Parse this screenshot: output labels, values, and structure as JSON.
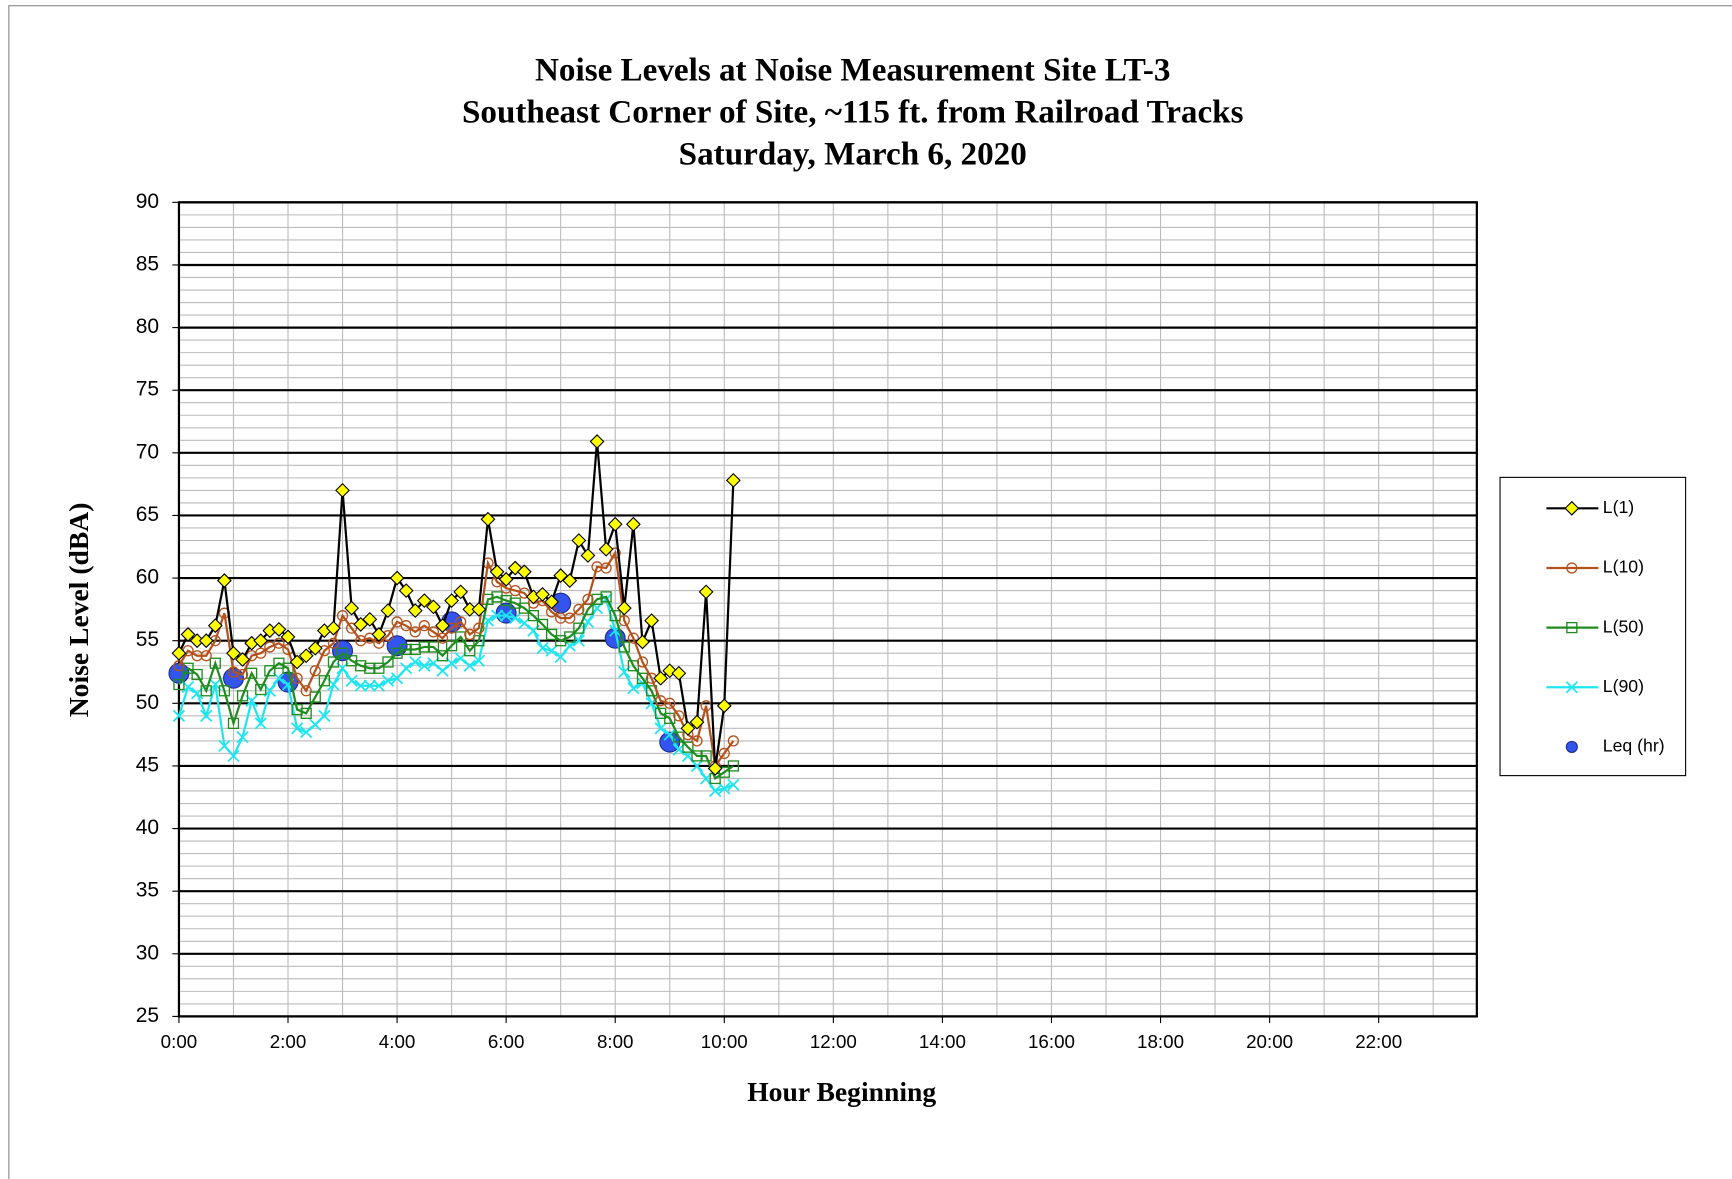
{
  "chart_data": {
    "type": "line",
    "title": [
      "Noise Levels at Noise Measurement Site LT-3",
      "Southeast Corner of Site, ~115 ft. from Railroad Tracks",
      "Saturday, March 6, 2020"
    ],
    "x_label": "Hour Beginning",
    "y_label": "Noise Level (dBA)",
    "xlim": [
      0,
      23.8
    ],
    "ylim": [
      25,
      90
    ],
    "xticks": [
      {
        "value": 0,
        "label": "0:00"
      },
      {
        "value": 2,
        "label": "2:00"
      },
      {
        "value": 4,
        "label": "4:00"
      },
      {
        "value": 6,
        "label": "6:00"
      },
      {
        "value": 8,
        "label": "8:00"
      },
      {
        "value": 10,
        "label": "10:00"
      },
      {
        "value": 12,
        "label": "12:00"
      },
      {
        "value": 14,
        "label": "14:00"
      },
      {
        "value": 16,
        "label": "16:00"
      },
      {
        "value": 18,
        "label": "18:00"
      },
      {
        "value": 20,
        "label": "20:00"
      },
      {
        "value": 22,
        "label": "22:00"
      }
    ],
    "yticks": [
      25,
      30,
      35,
      40,
      45,
      50,
      55,
      60,
      65,
      70,
      75,
      80,
      85,
      90
    ],
    "x_minor_step": 1,
    "y_minor_step": 1,
    "grid": true,
    "legend": "right",
    "x": [
      0,
      0.1667,
      0.3333,
      0.5,
      0.6667,
      0.8333,
      1,
      1.1667,
      1.3333,
      1.5,
      1.6667,
      1.8333,
      2,
      2.1667,
      2.3333,
      2.5,
      2.6667,
      2.8333,
      3,
      3.1667,
      3.3333,
      3.5,
      3.6667,
      3.8333,
      4,
      4.1667,
      4.3333,
      4.5,
      4.6667,
      4.8333,
      5,
      5.1667,
      5.3333,
      5.5,
      5.6667,
      5.8333,
      6,
      6.1667,
      6.3333,
      6.5,
      6.6667,
      6.8333,
      7,
      7.1667,
      7.3333,
      7.5,
      7.6667,
      7.8333,
      8,
      8.1667,
      8.3333,
      8.5,
      8.6667,
      8.8333,
      9,
      9.1667,
      9.3333,
      9.5,
      9.6667,
      9.8333,
      10,
      10.1667
    ],
    "series": [
      {
        "name": "L(1)",
        "color": "#000000",
        "marker": "diamond",
        "marker_color": "#ffff00",
        "values": [
          54,
          55.5,
          55,
          55,
          56.2,
          59.8,
          54,
          53.5,
          54.8,
          55,
          55.8,
          55.9,
          55.3,
          53.3,
          53.8,
          54.4,
          55.8,
          56,
          67,
          57.6,
          56.3,
          56.7,
          55.5,
          57.4,
          60,
          59,
          57.4,
          58.2,
          57.7,
          56.2,
          58.2,
          58.9,
          57.5,
          57.5,
          64.7,
          60.5,
          59.9,
          60.8,
          60.5,
          58.5,
          58.7,
          58.1,
          60.2,
          59.8,
          63,
          61.8,
          70.9,
          62.3,
          64.3,
          57.6,
          64.3,
          54.9,
          56.6,
          52,
          52.6,
          52.4,
          48,
          48.5,
          58.9,
          44.8,
          49.8,
          67.8
        ]
      },
      {
        "name": "L(10)",
        "color": "#b5521b",
        "marker": "circle",
        "values": [
          53,
          54.2,
          53.8,
          53.8,
          55,
          57.2,
          52.5,
          52.3,
          53.8,
          54,
          54.5,
          54.8,
          54.3,
          52,
          51,
          52.6,
          54.2,
          54.8,
          57,
          56,
          55,
          55.2,
          54.8,
          55.4,
          56.5,
          56.2,
          55.7,
          56.2,
          55.7,
          55.2,
          56,
          56.5,
          55.5,
          56,
          61.2,
          59.7,
          59.2,
          59,
          58.8,
          58,
          58.2,
          57.3,
          56.8,
          56.8,
          57.5,
          58.3,
          60.9,
          60.8,
          62,
          56.6,
          55.2,
          53.3,
          52,
          50.2,
          50,
          49,
          47.5,
          47,
          49.8,
          45,
          46,
          47
        ]
      },
      {
        "name": "L(50)",
        "color": "#1e8c1e",
        "marker": "square",
        "values": [
          51.5,
          52.8,
          52.3,
          51,
          53.2,
          51,
          48.4,
          50.6,
          52.4,
          51.1,
          52.6,
          53.2,
          52.8,
          49.5,
          49.2,
          50.5,
          51.8,
          53.3,
          54,
          53.4,
          53,
          52.8,
          52.8,
          53.3,
          54,
          54.3,
          54.3,
          54.5,
          54.5,
          53.8,
          54.6,
          55.3,
          54.2,
          55,
          58.3,
          58.5,
          58.2,
          58,
          57.6,
          57,
          56.3,
          55.5,
          55,
          55.3,
          56,
          57.5,
          58.3,
          58.5,
          57,
          54.5,
          53,
          52,
          51,
          49.2,
          48.8,
          47.3,
          46.5,
          45.8,
          45.8,
          44,
          44.5,
          45
        ]
      },
      {
        "name": "L(90)",
        "color": "#1ee6f0",
        "marker": "x",
        "values": [
          49,
          51.3,
          50.8,
          49,
          51.5,
          46.6,
          45.8,
          47.3,
          50.2,
          48.4,
          51,
          52,
          51.5,
          48,
          47.7,
          48.3,
          49,
          51.5,
          52.8,
          51.8,
          51.4,
          51.4,
          51.4,
          51.8,
          52,
          52.8,
          53.3,
          53,
          53.2,
          52.6,
          53.2,
          53.6,
          53,
          53.4,
          56.6,
          57,
          57,
          56.8,
          56.4,
          55.8,
          54.4,
          54.2,
          53.7,
          54.6,
          55,
          56.5,
          57.6,
          58.3,
          55.8,
          52.5,
          51.2,
          51.6,
          50,
          48,
          47.5,
          46.3,
          45.8,
          45,
          44,
          43,
          43.2,
          43.5
        ]
      },
      {
        "name": "Leq (hr)",
        "color": "#3355ee",
        "marker": "dot",
        "line": false,
        "x": [
          0,
          1,
          2,
          3,
          4,
          5,
          6,
          7,
          8,
          9
        ],
        "values": [
          52.4,
          52,
          51.7,
          54.2,
          54.6,
          56.5,
          57.2,
          58,
          55.2,
          46.9
        ]
      }
    ]
  }
}
